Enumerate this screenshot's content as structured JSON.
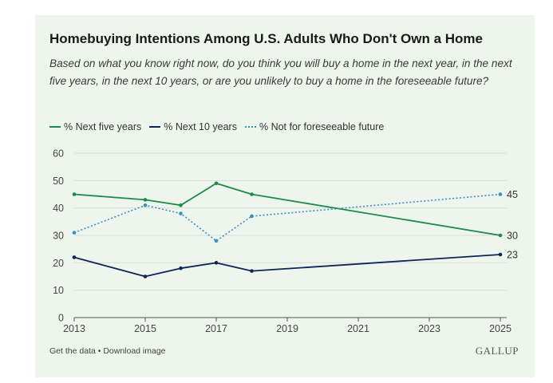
{
  "title": "Homebuying Intentions Among U.S. Adults Who Don't Own a Home",
  "subtitle": "Based on what you know right now, do you think you will buy a home in the next year, in the next five years, in the next 10 years, or are you unlikely to buy a home in the foreseeable future?",
  "footer": {
    "get_data": "Get the data",
    "separator": " • ",
    "download": "Download image",
    "brand": "GALLUP"
  },
  "chart_data": {
    "type": "line",
    "title": "Homebuying Intentions Among U.S. Adults Who Don't Own a Home",
    "xlabel": "",
    "ylabel": "",
    "xlim": [
      2013,
      2025
    ],
    "ylim": [
      0,
      60
    ],
    "x_ticks": [
      "2013",
      "2015",
      "2017",
      "2019",
      "2021",
      "2023",
      "2025"
    ],
    "y_ticks": [
      "0",
      "10",
      "20",
      "30",
      "40",
      "50",
      "60"
    ],
    "grid": true,
    "legend_position": "top-left",
    "series": [
      {
        "name": "% Next five years",
        "color": "#1b8a4c",
        "style": "solid",
        "x": [
          2013,
          2015,
          2016,
          2017,
          2018,
          2025
        ],
        "values": [
          45,
          43,
          41,
          49,
          45,
          30
        ],
        "end_label": "30"
      },
      {
        "name": "% Next 10 years",
        "color": "#0f2557",
        "style": "solid",
        "x": [
          2013,
          2015,
          2016,
          2017,
          2018,
          2025
        ],
        "values": [
          22,
          15,
          18,
          20,
          17,
          23
        ],
        "end_label": "23"
      },
      {
        "name": "% Not for foreseeable future",
        "color": "#3a8fc9",
        "style": "dotted",
        "x": [
          2013,
          2015,
          2016,
          2017,
          2018,
          2025
        ],
        "values": [
          31,
          41,
          38,
          28,
          37,
          45
        ],
        "end_label": "45"
      }
    ]
  }
}
